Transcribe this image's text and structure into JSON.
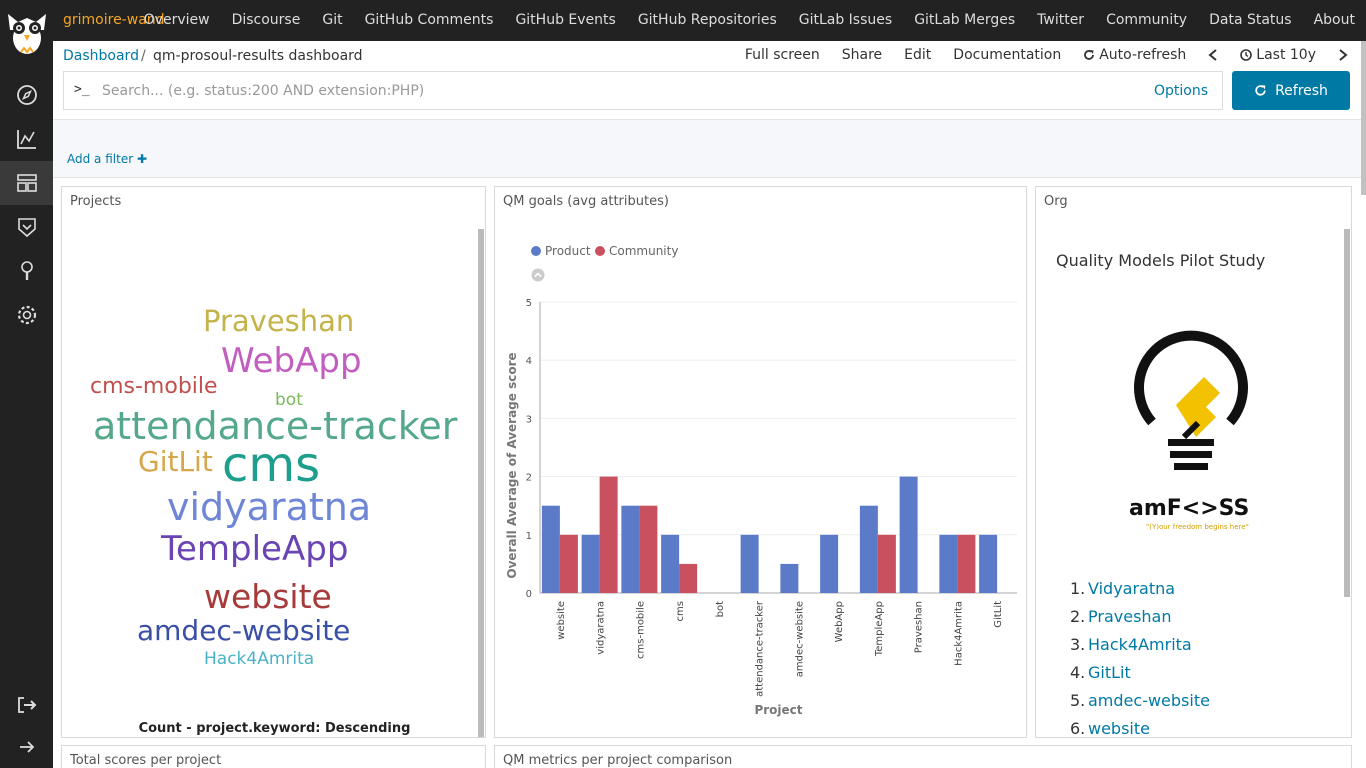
{
  "brand": "grimoire-wand",
  "nav": [
    "Overview",
    "Discourse",
    "Git",
    "GitHub Comments",
    "GitHub Events",
    "GitHub Repositories",
    "GitLab Issues",
    "GitLab Merges",
    "Twitter",
    "Community",
    "Data Status",
    "About"
  ],
  "sidebar_icons": [
    "compass-icon",
    "chart-icon",
    "dashboard-icon",
    "shield-icon",
    "wrench-icon",
    "gear-icon"
  ],
  "breadcrumb": {
    "root": "Dashboard",
    "sep": "/",
    "current": "qm-prosoul-results dashboard"
  },
  "actions": {
    "fullscreen": "Full screen",
    "share": "Share",
    "edit": "Edit",
    "documentation": "Documentation",
    "autorefresh": "Auto-refresh",
    "timerange": "Last 10y"
  },
  "search": {
    "prompt": ">_",
    "placeholder": "Search... (e.g. status:200 AND extension:PHP)",
    "options": "Options",
    "refresh": "Refresh"
  },
  "filter": {
    "add": "Add a filter"
  },
  "panels": {
    "projects": {
      "title": "Projects",
      "caption": "Count - project.keyword: Descending",
      "words": [
        {
          "text": "Praveshan",
          "color": "#c4b24a"
        },
        {
          "text": "WebApp",
          "color": "#c35ec1"
        },
        {
          "text": "cms-mobile",
          "color": "#c0504d"
        },
        {
          "text": "bot",
          "color": "#7cb95a"
        },
        {
          "text": "attendance-tracker",
          "color": "#56a88a"
        },
        {
          "text": "GitLit",
          "color": "#d6a64a"
        },
        {
          "text": "cms",
          "color": "#1e9e8c"
        },
        {
          "text": "vidyaratna",
          "color": "#6f86d6"
        },
        {
          "text": "TempleApp",
          "color": "#6b44b4"
        },
        {
          "text": "website",
          "color": "#a73a3a"
        },
        {
          "text": "amdec-website",
          "color": "#3a4fa6"
        },
        {
          "text": "Hack4Amrita",
          "color": "#4cb3c4"
        }
      ]
    },
    "qm": {
      "title": "QM goals (avg attributes)"
    },
    "org": {
      "title": "Org",
      "heading": "Quality Models Pilot Study",
      "logo_text": "amF<>SS",
      "logo_tagline": "\"(Y)our freedom begins here\"",
      "list": [
        "Vidyaratna",
        "Praveshan",
        "Hack4Amrita",
        "GitLit",
        "amdec-website",
        "website"
      ]
    },
    "total": {
      "title": "Total scores per project"
    },
    "metrics": {
      "title": "QM metrics per project comparison"
    }
  },
  "chart_data": {
    "type": "bar",
    "categories": [
      "website",
      "vidyaratna",
      "cms-mobile",
      "cms",
      "bot",
      "attendance-tracker",
      "amdec-website",
      "WebApp",
      "TempleApp",
      "Praveshan",
      "Hack4Amrita",
      "GitLit"
    ],
    "series": [
      {
        "name": "Product",
        "color": "#5b7bc9",
        "values": [
          1.5,
          1,
          1.5,
          1,
          0,
          1,
          0.5,
          1,
          1.5,
          2,
          1,
          1
        ]
      },
      {
        "name": "Community",
        "color": "#c9505f",
        "values": [
          1,
          2,
          1.5,
          0.5,
          0,
          0,
          0,
          0,
          1,
          0,
          1,
          0
        ]
      }
    ],
    "xlabel": "Project",
    "ylabel": "Overall Average of Average score",
    "ylim": [
      0,
      5
    ],
    "yticks": [
      "0",
      "1",
      "2",
      "3",
      "4",
      "5"
    ],
    "grid": true,
    "legend": "top-left"
  }
}
